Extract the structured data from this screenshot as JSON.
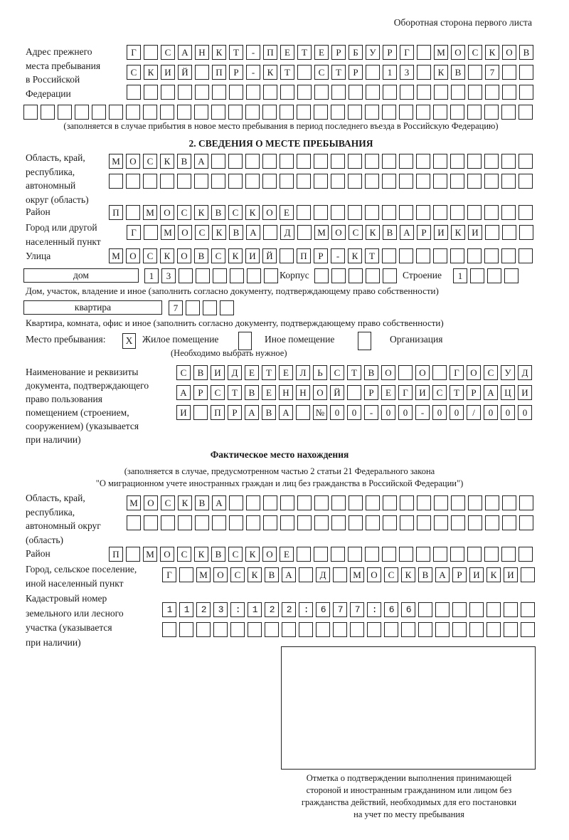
{
  "header": {
    "side_note": "Оборотная сторона первого листа"
  },
  "previous_address": {
    "label_lines": [
      "Адрес прежнего",
      "места пребывания",
      "в Российской",
      "Федерации"
    ],
    "rows": [
      "Г САНКТ-ПЕТЕРБУРГ МОСКОВ",
      "СКИЙ ПР-КТ СТР 13 КВ 7  ",
      "                        ",
      "                              "
    ],
    "note": "(заполняется в случае прибытия в новое место пребывания в период последнего въезда в Российскую Федерацию)"
  },
  "section2": {
    "title": "2. СВЕДЕНИЯ О МЕСТЕ ПРЕБЫВАНИЯ",
    "region_label_lines": [
      "Область, край,",
      "республика,",
      "автономный",
      "округ (область)"
    ],
    "region_rows": [
      "МОСКВА                   ",
      "                         "
    ],
    "district_label": "Район",
    "district_row": "П МОСКВСКОЕ              ",
    "city_label_lines": [
      "Город или другой",
      "населенный пункт"
    ],
    "city_row": "Г МОСКВА Д МОСКВАРИКИ   ",
    "street_label": "Улица",
    "street_row": "МОСКОВСКИЙ ПР-КТ         ",
    "house_type": "дом",
    "house_row": "13      ",
    "building_label": "Корпус",
    "building_row": "     ",
    "structure_label": "Строение",
    "structure_row": "1   ",
    "house_caption": "Дом, участок, владение и иное (заполнить согласно документу, подтверждающему право собственности)",
    "apartment_type": "квартира",
    "apartment_row": "7   ",
    "apartment_caption": "Квартира, комната, офис и иное (заполнить согласно документу, подтверждающему право собственности)",
    "stay_place_label": "Место пребывания:",
    "stay_options": [
      {
        "mark": "X",
        "label": "Жилое помещение"
      },
      {
        "mark": "",
        "label": "Иное помещение"
      },
      {
        "mark": "",
        "label": "Организация"
      }
    ],
    "stay_hint": "(Необходимо выбрать нужное)",
    "document_label_lines": [
      "Наименование и реквизиты",
      "документа, подтверждающего",
      "право пользования",
      "помещением (строением,",
      "сооружением) (указывается",
      "при наличии)"
    ],
    "document_rows": [
      "СВИДЕТЕЛЬСТВО О ГОСУД",
      "АРСТВЕННОЙ РЕГИСТРАЦИ",
      "И ПРАВА №00-00-00/000"
    ]
  },
  "actual_location": {
    "title": "Фактическое место нахождения",
    "subtitle_lines": [
      "(заполняется в случае, предусмотренном частью 2 статьи 21 Федерального закона",
      "\"О миграционном учете иностранных граждан и лиц без гражданства в Российской Федерации\")"
    ],
    "region_label_lines": [
      "Область, край,",
      "республика,",
      "автономный округ",
      "(область)"
    ],
    "region_rows": [
      "МОСКВА                  ",
      "                        "
    ],
    "district_label": "Район",
    "district_row": "П МОСКВСКОЕ              ",
    "city_label_lines": [
      "Город, сельское поселение,",
      "иной населенный пункт"
    ],
    "city_row": "Г МОСКВА Д МОСКВАРИКИ ",
    "cadastral_label_lines": [
      "Кадастровый номер",
      "земельного или лесного",
      "участка (указывается",
      "при наличии)"
    ],
    "cadastral_rows": [
      "1123:122:677:66       ",
      "                      "
    ],
    "confirmation_caption_lines": [
      "Отметка о подтверждении выполнения принимающей",
      "стороной и иностранным гражданином или лицом без",
      "гражданства действий, необходимых для его постановки",
      "на учет по месту пребывания"
    ]
  }
}
